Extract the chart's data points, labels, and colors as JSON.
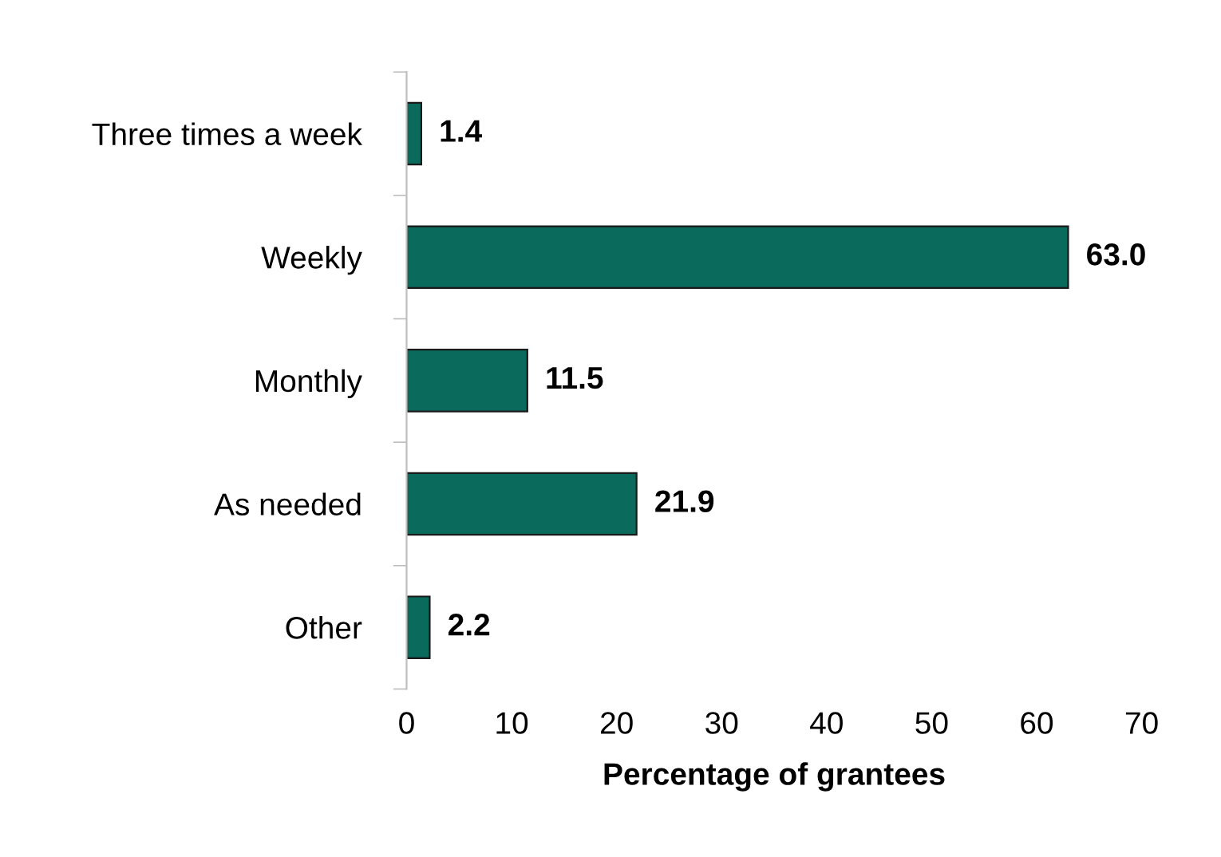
{
  "chart_data": {
    "type": "bar",
    "orientation": "horizontal",
    "xlabel": "Percentage of grantees",
    "categories": [
      "Three times a week",
      "Weekly",
      "Monthly",
      "As needed",
      "Other"
    ],
    "values": [
      1.4,
      63.0,
      11.5,
      21.9,
      2.2
    ],
    "color": "#0a6b5c",
    "value_labels": [
      "1.4",
      "63.0",
      "11.5",
      "21.9",
      "2.2"
    ],
    "xlim": [
      0,
      70
    ],
    "xticks": [
      0,
      10,
      20,
      30,
      40,
      50,
      60,
      70
    ],
    "grid": false,
    "legend": false
  }
}
